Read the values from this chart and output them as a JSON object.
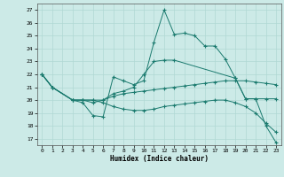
{
  "xlabel": "Humidex (Indice chaleur)",
  "xlim": [
    -0.5,
    23.5
  ],
  "ylim": [
    16.5,
    27.5
  ],
  "yticks": [
    17,
    18,
    19,
    20,
    21,
    22,
    23,
    24,
    25,
    26,
    27
  ],
  "xticks": [
    0,
    1,
    2,
    3,
    4,
    5,
    6,
    7,
    8,
    9,
    10,
    11,
    12,
    13,
    14,
    15,
    16,
    17,
    18,
    19,
    20,
    21,
    22,
    23
  ],
  "background_color": "#cceae7",
  "grid_color": "#b0d8d4",
  "line_color": "#1a7a6e",
  "line1_x": [
    0,
    1,
    3,
    4,
    5,
    6,
    7,
    8,
    9,
    10,
    11,
    12,
    13,
    14,
    15,
    16,
    17,
    18,
    19,
    20,
    21,
    22,
    23
  ],
  "line1_y": [
    22,
    21,
    20,
    19.8,
    18.8,
    18.7,
    21.8,
    21.5,
    21.2,
    21.5,
    24.5,
    27.0,
    25.1,
    25.2,
    25.0,
    24.2,
    24.2,
    23.2,
    21.7,
    20.1,
    20.1,
    18.0,
    16.7
  ],
  "line2_x": [
    0,
    1,
    3,
    4,
    5,
    6,
    7,
    8,
    9,
    10,
    11,
    12,
    13,
    19,
    20,
    21,
    22,
    23
  ],
  "line2_y": [
    22,
    21,
    20,
    20,
    19.8,
    20.0,
    20.5,
    20.7,
    21.0,
    22.0,
    23.0,
    23.1,
    23.1,
    21.7,
    20.1,
    20.1,
    20.1,
    20.1
  ],
  "line3_x": [
    0,
    1,
    3,
    4,
    5,
    6,
    7,
    8,
    9,
    10,
    11,
    12,
    13,
    14,
    15,
    16,
    17,
    18,
    19,
    20,
    21,
    22,
    23
  ],
  "line3_y": [
    22,
    21,
    20,
    20,
    20,
    20,
    20.3,
    20.5,
    20.6,
    20.7,
    20.8,
    20.9,
    21.0,
    21.1,
    21.2,
    21.3,
    21.4,
    21.5,
    21.5,
    21.5,
    21.4,
    21.3,
    21.2
  ],
  "line4_x": [
    0,
    1,
    3,
    4,
    5,
    6,
    7,
    8,
    9,
    10,
    11,
    12,
    13,
    14,
    15,
    16,
    17,
    18,
    19,
    20,
    21,
    22,
    23
  ],
  "line4_y": [
    22,
    21,
    20,
    20,
    20,
    19.8,
    19.5,
    19.3,
    19.2,
    19.2,
    19.3,
    19.5,
    19.6,
    19.7,
    19.8,
    19.9,
    20.0,
    20.0,
    19.8,
    19.5,
    19.0,
    18.2,
    17.5
  ]
}
